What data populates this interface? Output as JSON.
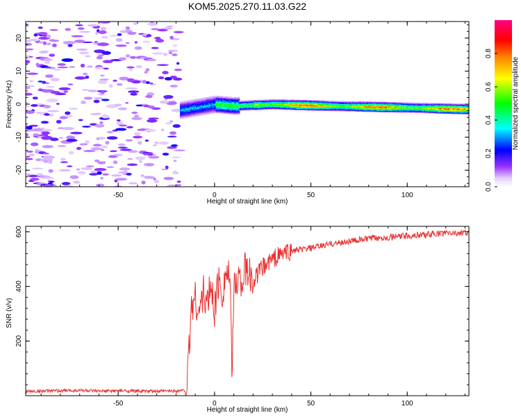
{
  "title": "KOM5.2025.270.11.03.G22",
  "chart_data": [
    {
      "type": "heatmap",
      "title": "KOM5.2025.270.11.03.G22",
      "xlabel": "Height of straight line (km)",
      "ylabel": "Frequency (Hz)",
      "xlim": [
        -98,
        132
      ],
      "ylim": [
        -25,
        25
      ],
      "x_ticks": [
        -50,
        0,
        50,
        100
      ],
      "y_ticks": [
        -20,
        -10,
        0,
        10,
        20
      ],
      "colorbar": {
        "label": "Normalized spectral amplitude",
        "range": [
          0,
          1
        ],
        "ticks": [
          0.0,
          0.2,
          0.4,
          0.6,
          0.8
        ],
        "colormap": "rainbow (violet→blue→cyan→green→yellow→orange→red→magenta)",
        "colors": [
          "#ffffff",
          "#cc99ff",
          "#6600ff",
          "#0000ff",
          "#00ffff",
          "#00ff00",
          "#ffff00",
          "#ff8000",
          "#ff0000",
          "#ff0080"
        ]
      },
      "features": [
        {
          "name": "noise",
          "x_range": [
            -98,
            -18
          ],
          "y_range": [
            -25,
            25
          ],
          "amplitude": "low (0.05–0.2), scattered"
        },
        {
          "name": "signal-band",
          "x_range": [
            -18,
            132
          ],
          "center_frequency": [
            [
              -15,
              -1.5
            ],
            [
              0,
              0
            ],
            [
              10,
              -0.5
            ],
            [
              30,
              0
            ],
            [
              60,
              -0.5
            ],
            [
              100,
              -1.0
            ],
            [
              132,
              -1.5
            ]
          ],
          "amplitude": "0.2–0.9"
        }
      ]
    },
    {
      "type": "line",
      "xlabel": "Height of straight line (km)",
      "ylabel": "SNR (v/v)",
      "xlim": [
        -98,
        132
      ],
      "ylim": [
        0,
        620
      ],
      "x_ticks": [
        -50,
        0,
        50,
        100
      ],
      "y_ticks": [
        200,
        400,
        600
      ],
      "color": "#e83030",
      "series": [
        {
          "x": [
            -98,
            -90,
            -80,
            -70,
            -60,
            -50,
            -40,
            -30,
            -20,
            -15,
            -14,
            -13,
            -12,
            -10,
            -8,
            -6,
            -4,
            -2,
            0,
            2,
            4,
            6,
            8,
            9,
            10,
            12,
            14,
            16,
            18,
            20,
            25,
            30,
            35,
            40,
            50,
            60,
            70,
            80,
            90,
            100,
            110,
            120,
            132
          ],
          "y": [
            15,
            17,
            18,
            20,
            16,
            18,
            17,
            16,
            18,
            20,
            60,
            200,
            330,
            360,
            300,
            380,
            330,
            400,
            320,
            420,
            380,
            460,
            420,
            80,
            380,
            440,
            420,
            460,
            440,
            420,
            470,
            500,
            520,
            530,
            540,
            555,
            565,
            575,
            580,
            585,
            590,
            595,
            595
          ]
        }
      ]
    }
  ]
}
